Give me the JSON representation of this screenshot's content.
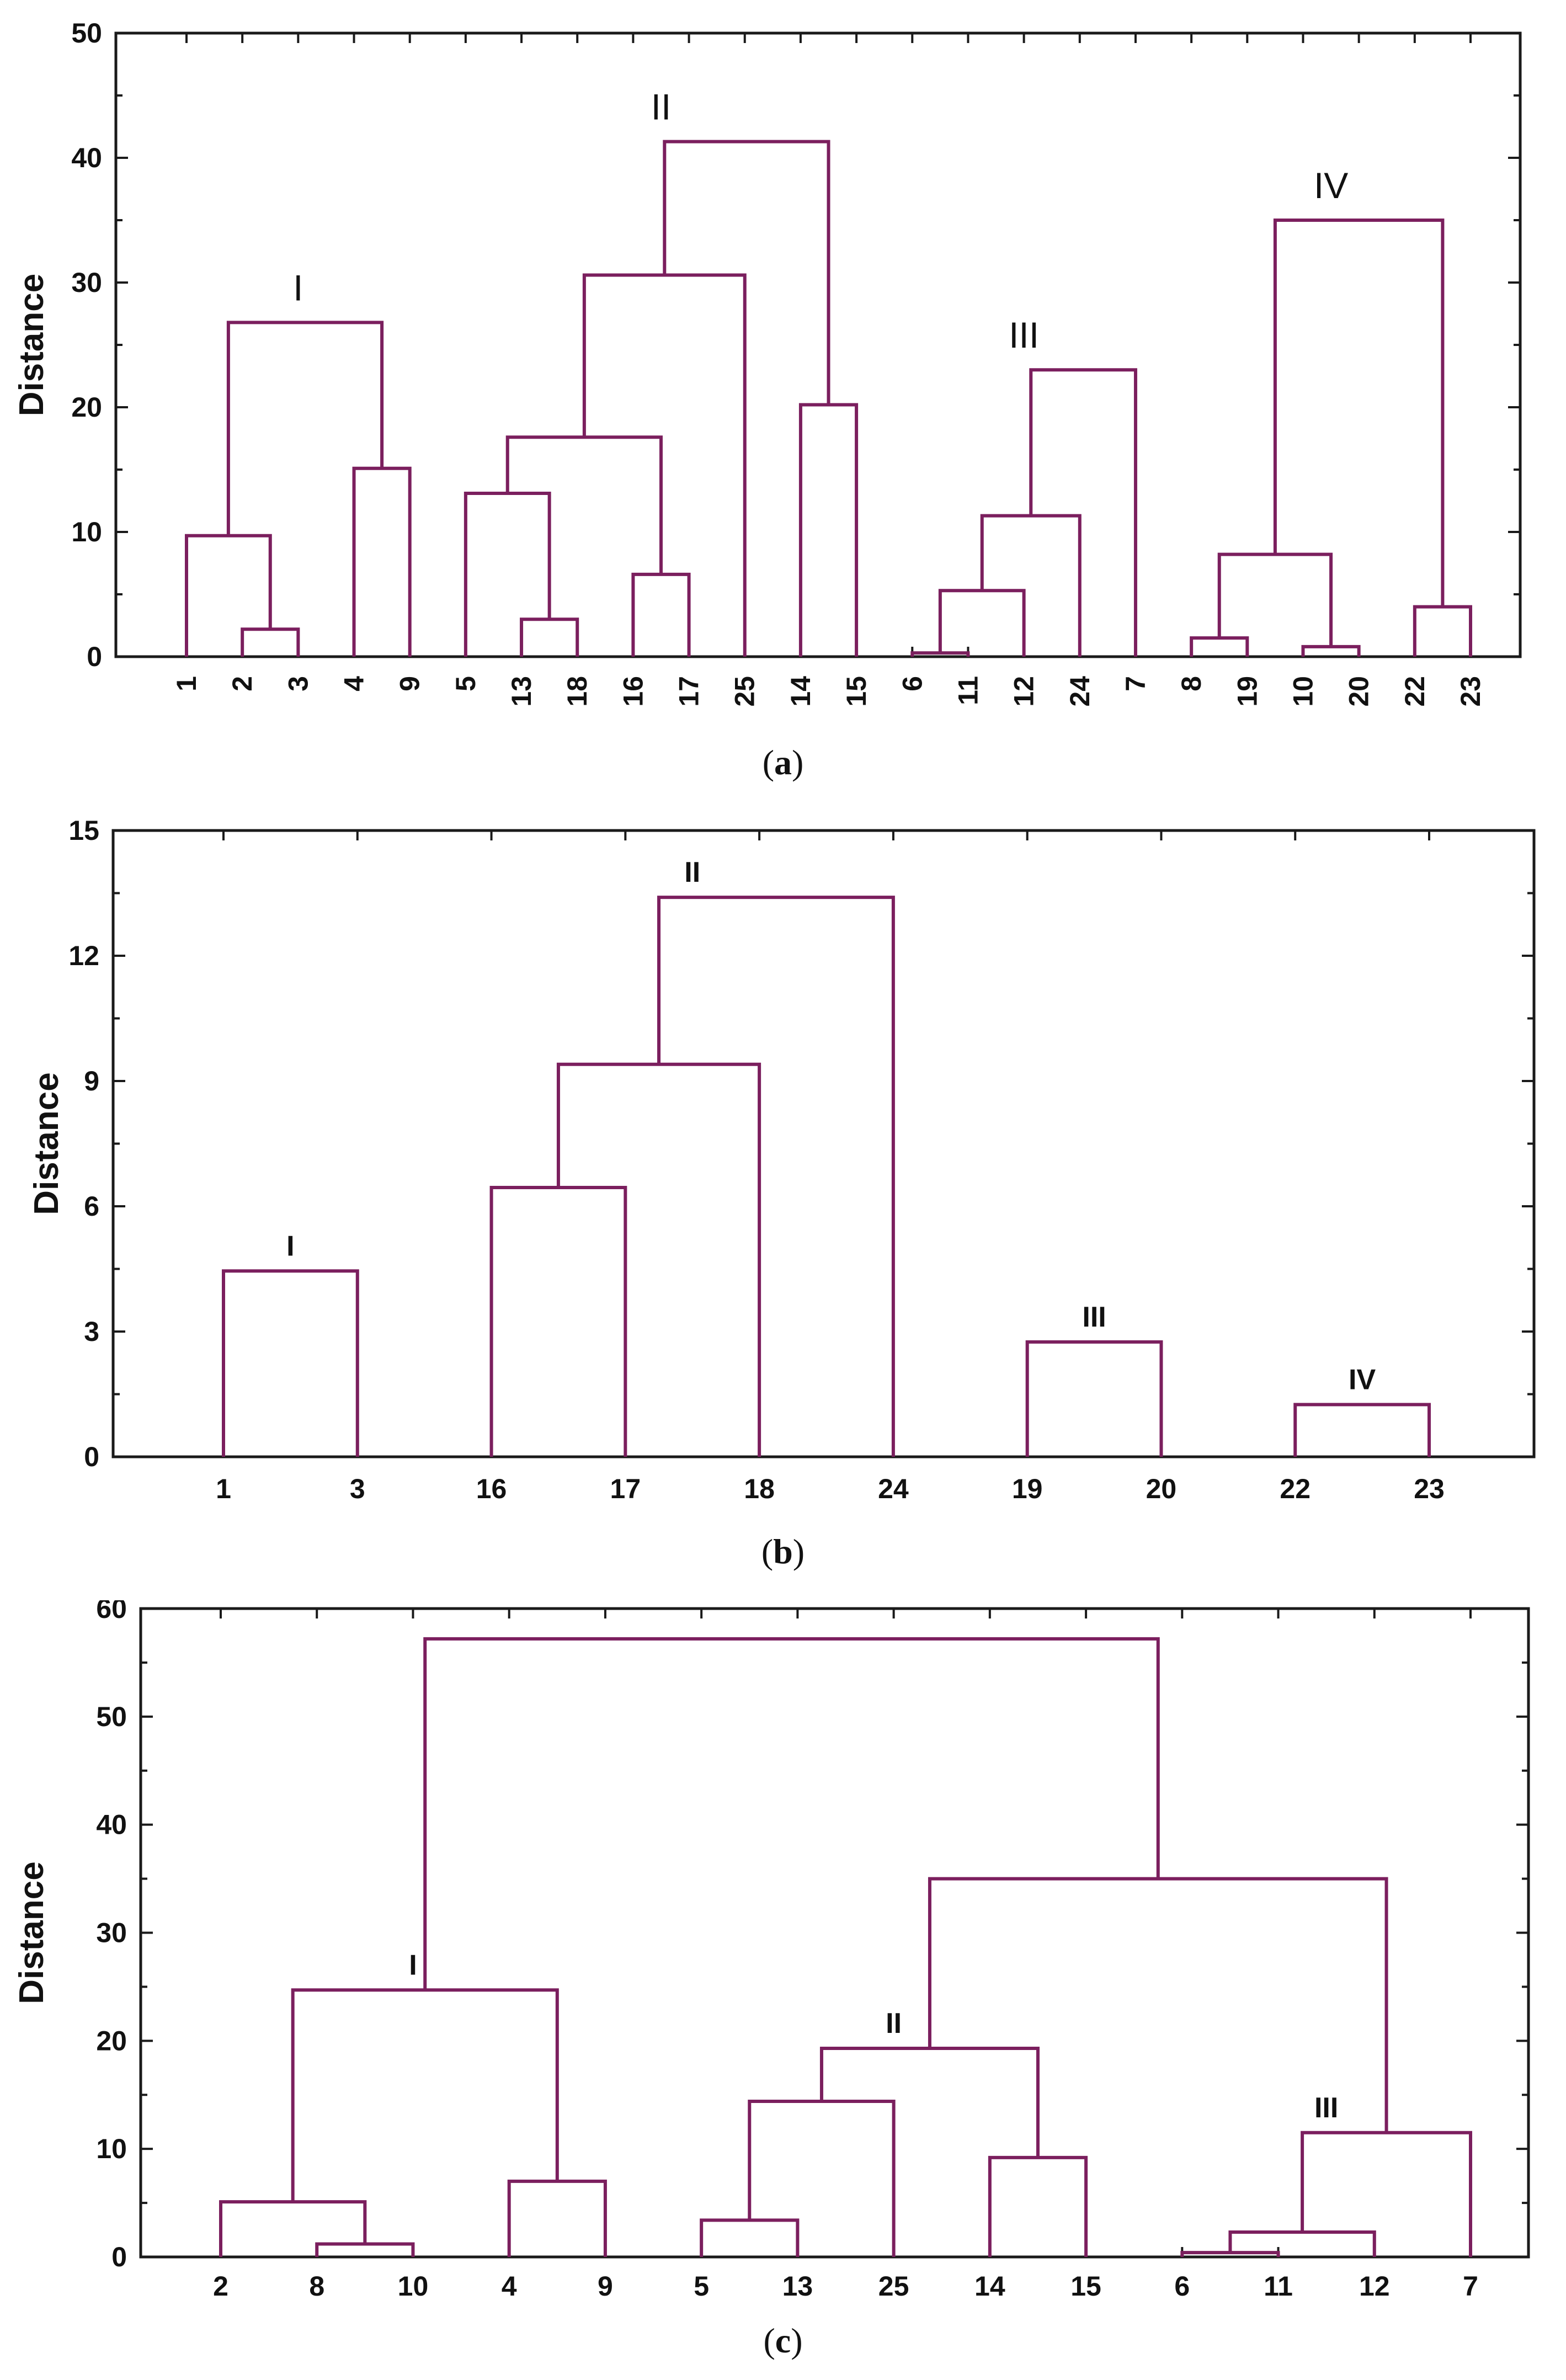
{
  "chart_data": [
    {
      "type": "dendrogram",
      "id": "a",
      "caption": "a",
      "ylabel": "Distance",
      "ylim": [
        0,
        50
      ],
      "yticks": [
        0,
        10,
        20,
        30,
        40,
        50
      ],
      "leaves": [
        "1",
        "2",
        "3",
        "4",
        "9",
        "5",
        "13",
        "18",
        "16",
        "17",
        "25",
        "14",
        "15",
        "6",
        "11",
        "12",
        "24",
        "7",
        "8",
        "19",
        "10",
        "20",
        "22",
        "23"
      ],
      "clusters": [
        {
          "label": "I",
          "members": [
            "1",
            "2",
            "3",
            "4",
            "9"
          ],
          "height": 26.8
        },
        {
          "label": "II",
          "members": [
            "5",
            "13",
            "18",
            "16",
            "17",
            "25",
            "14",
            "15"
          ],
          "height": 41.3
        },
        {
          "label": "III",
          "members": [
            "6",
            "11",
            "12",
            "24",
            "7"
          ],
          "height": 23.0
        },
        {
          "label": "IV",
          "members": [
            "8",
            "19",
            "10",
            "20",
            "22",
            "23"
          ],
          "height": 35.0
        }
      ],
      "merges": [
        {
          "left": "2",
          "right": "3",
          "height": 2.2
        },
        {
          "left": "1",
          "right": "2|3",
          "height": 9.7
        },
        {
          "left": "4",
          "right": "9",
          "height": 15.1
        },
        {
          "left": "1|2|3",
          "right": "4|9",
          "height": 26.8
        },
        {
          "left": "13",
          "right": "18",
          "height": 3.0
        },
        {
          "left": "5",
          "right": "13|18",
          "height": 13.1
        },
        {
          "left": "16",
          "right": "17",
          "height": 6.6
        },
        {
          "left": "5|13|18",
          "right": "16|17",
          "height": 17.6
        },
        {
          "left": "5|13|18|16|17",
          "right": "25",
          "height": 30.6
        },
        {
          "left": "14",
          "right": "15",
          "height": 20.2
        },
        {
          "left": "5|13|18|16|17|25",
          "right": "14|15",
          "height": 41.3
        },
        {
          "left": "6",
          "right": "11",
          "height": 0.3
        },
        {
          "left": "6|11",
          "right": "12",
          "height": 5.3
        },
        {
          "left": "6|11|12",
          "right": "24",
          "height": 11.3
        },
        {
          "left": "6|11|12|24",
          "right": "7",
          "height": 23.0
        },
        {
          "left": "8",
          "right": "19",
          "height": 1.5
        },
        {
          "left": "10",
          "right": "20",
          "height": 0.8
        },
        {
          "left": "8|19",
          "right": "10|20",
          "height": 8.2
        },
        {
          "left": "22",
          "right": "23",
          "height": 4.0
        },
        {
          "left": "8|19|10|20",
          "right": "22|23",
          "height": 35.0
        }
      ]
    },
    {
      "type": "dendrogram",
      "id": "b",
      "caption": "b",
      "ylabel": "Distance",
      "ylim": [
        0,
        15
      ],
      "yticks": [
        0,
        3,
        6,
        9,
        12,
        15
      ],
      "leaves": [
        "1",
        "3",
        "16",
        "17",
        "18",
        "24",
        "19",
        "20",
        "22",
        "23"
      ],
      "clusters": [
        {
          "label": "I",
          "members": [
            "1",
            "3"
          ],
          "height": 4.45
        },
        {
          "label": "II",
          "members": [
            "16",
            "17",
            "18",
            "24"
          ],
          "height": 13.4
        },
        {
          "label": "III",
          "members": [
            "19",
            "20"
          ],
          "height": 2.75
        },
        {
          "label": "IV",
          "members": [
            "22",
            "23"
          ],
          "height": 1.25
        }
      ],
      "merges": [
        {
          "left": "1",
          "right": "3",
          "height": 4.45
        },
        {
          "left": "16",
          "right": "17",
          "height": 6.45
        },
        {
          "left": "16|17",
          "right": "18",
          "height": 9.4
        },
        {
          "left": "16|17|18",
          "right": "24",
          "height": 13.4
        },
        {
          "left": "19",
          "right": "20",
          "height": 2.75
        },
        {
          "left": "22",
          "right": "23",
          "height": 1.25
        }
      ]
    },
    {
      "type": "dendrogram",
      "id": "c",
      "caption": "c",
      "ylabel": "Distance",
      "ylim": [
        0,
        60
      ],
      "yticks": [
        0,
        10,
        20,
        30,
        40,
        50,
        60
      ],
      "leaves": [
        "2",
        "8",
        "10",
        "4",
        "9",
        "5",
        "13",
        "25",
        "14",
        "15",
        "6",
        "11",
        "12",
        "7"
      ],
      "clusters": [
        {
          "label": "I",
          "members": [
            "2",
            "8",
            "10",
            "4",
            "9"
          ],
          "height": 24.7
        },
        {
          "label": "II",
          "members": [
            "5",
            "13",
            "25",
            "14",
            "15"
          ],
          "height": 19.3
        },
        {
          "label": "III",
          "members": [
            "6",
            "11",
            "12",
            "7"
          ],
          "height": 11.5
        }
      ],
      "merges": [
        {
          "left": "8",
          "right": "10",
          "height": 1.2
        },
        {
          "left": "2",
          "right": "8|10",
          "height": 5.1
        },
        {
          "left": "4",
          "right": "9",
          "height": 7.0
        },
        {
          "left": "2|8|10",
          "right": "4|9",
          "height": 24.7
        },
        {
          "left": "5",
          "right": "13",
          "height": 3.4
        },
        {
          "left": "5|13",
          "right": "25",
          "height": 14.4
        },
        {
          "left": "14",
          "right": "15",
          "height": 9.2
        },
        {
          "left": "5|13|25",
          "right": "14|15",
          "height": 19.3
        },
        {
          "left": "6",
          "right": "11",
          "height": 0.4
        },
        {
          "left": "6|11",
          "right": "12",
          "height": 2.3
        },
        {
          "left": "6|11|12",
          "right": "7",
          "height": 11.5
        },
        {
          "left": "5|13|25|14|15",
          "right": "6|11|12|7",
          "height": 35.0
        },
        {
          "left": "2|8|10|4|9",
          "right": "5|13|25|14|15|6|11|12|7",
          "height": 57.2
        }
      ]
    }
  ]
}
